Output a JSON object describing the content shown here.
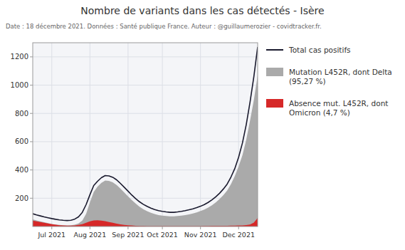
{
  "chart_data": {
    "type": "line",
    "title": "Nombre de variants dans les cas détectés - Isère",
    "subtitle": "Date : 18 décembre 2021. Données : Santé publique France. Auteur : @guillaumerozier - covidtracker.fr.",
    "categories": [
      null,
      null,
      null,
      null,
      null,
      "Jul 2021",
      null,
      null,
      null,
      null,
      null,
      null,
      null,
      null,
      null,
      "Aug 2021",
      null,
      null,
      null,
      null,
      null,
      null,
      null,
      null,
      null,
      "Sep 2021",
      null,
      null,
      null,
      null,
      null,
      null,
      null,
      null,
      "Oct 2021",
      null,
      null,
      null,
      null,
      null,
      null,
      null,
      null,
      null,
      "Nov 2021",
      null,
      null,
      null,
      null,
      null,
      null,
      null,
      null,
      null,
      "Dec 2021",
      null,
      null,
      null,
      null,
      null
    ],
    "series": [
      {
        "name": "Total cas positifs",
        "type": "line",
        "color": "#1a1a2e",
        "values": [
          90,
          82,
          75,
          68,
          62,
          56,
          51,
          47,
          44,
          42,
          44,
          52,
          68,
          100,
          155,
          225,
          290,
          320,
          345,
          360,
          358,
          348,
          330,
          305,
          278,
          250,
          222,
          197,
          175,
          157,
          142,
          130,
          120,
          112,
          107,
          103,
          100,
          100,
          103,
          107,
          112,
          118,
          125,
          133,
          143,
          155,
          170,
          188,
          210,
          235,
          265,
          300,
          350,
          410,
          490,
          590,
          720,
          880,
          1060,
          1270
        ]
      },
      {
        "name": "Mutation L452R, dont Delta (95,27 %)",
        "type": "area",
        "color": "#aaaaaa",
        "values": [
          50,
          43,
          37,
          30,
          24,
          18,
          14,
          11,
          9,
          8,
          9,
          13,
          22,
          42,
          90,
          170,
          245,
          282,
          308,
          325,
          323,
          312,
          293,
          268,
          241,
          213,
          186,
          162,
          140,
          122,
          108,
          97,
          88,
          81,
          77,
          74,
          72,
          72,
          74,
          77,
          81,
          86,
          92,
          99,
          109,
          120,
          134,
          150,
          170,
          194,
          222,
          255,
          300,
          356,
          424,
          504,
          614,
          748,
          895,
          1070
        ]
      },
      {
        "name": "Absence mut. L452R, dont Omicron (4,7 %)",
        "type": "area",
        "color": "#d62828",
        "values": [
          42,
          36,
          31,
          26,
          21,
          16,
          12,
          9,
          7,
          6,
          6,
          8,
          11,
          17,
          26,
          36,
          43,
          44,
          42,
          38,
          32,
          26,
          20,
          15,
          11,
          9,
          7,
          5,
          4,
          4,
          3,
          3,
          3,
          3,
          3,
          2,
          2,
          2,
          2,
          2,
          3,
          3,
          3,
          3,
          3,
          4,
          4,
          5,
          5,
          5,
          5,
          5,
          6,
          6,
          7,
          8,
          10,
          14,
          28,
          60
        ]
      }
    ],
    "ylim": [
      0,
      1300
    ],
    "yticks": [
      200,
      400,
      600,
      800,
      1000,
      1200
    ],
    "stacked": false,
    "grid": true,
    "legend": "right"
  }
}
